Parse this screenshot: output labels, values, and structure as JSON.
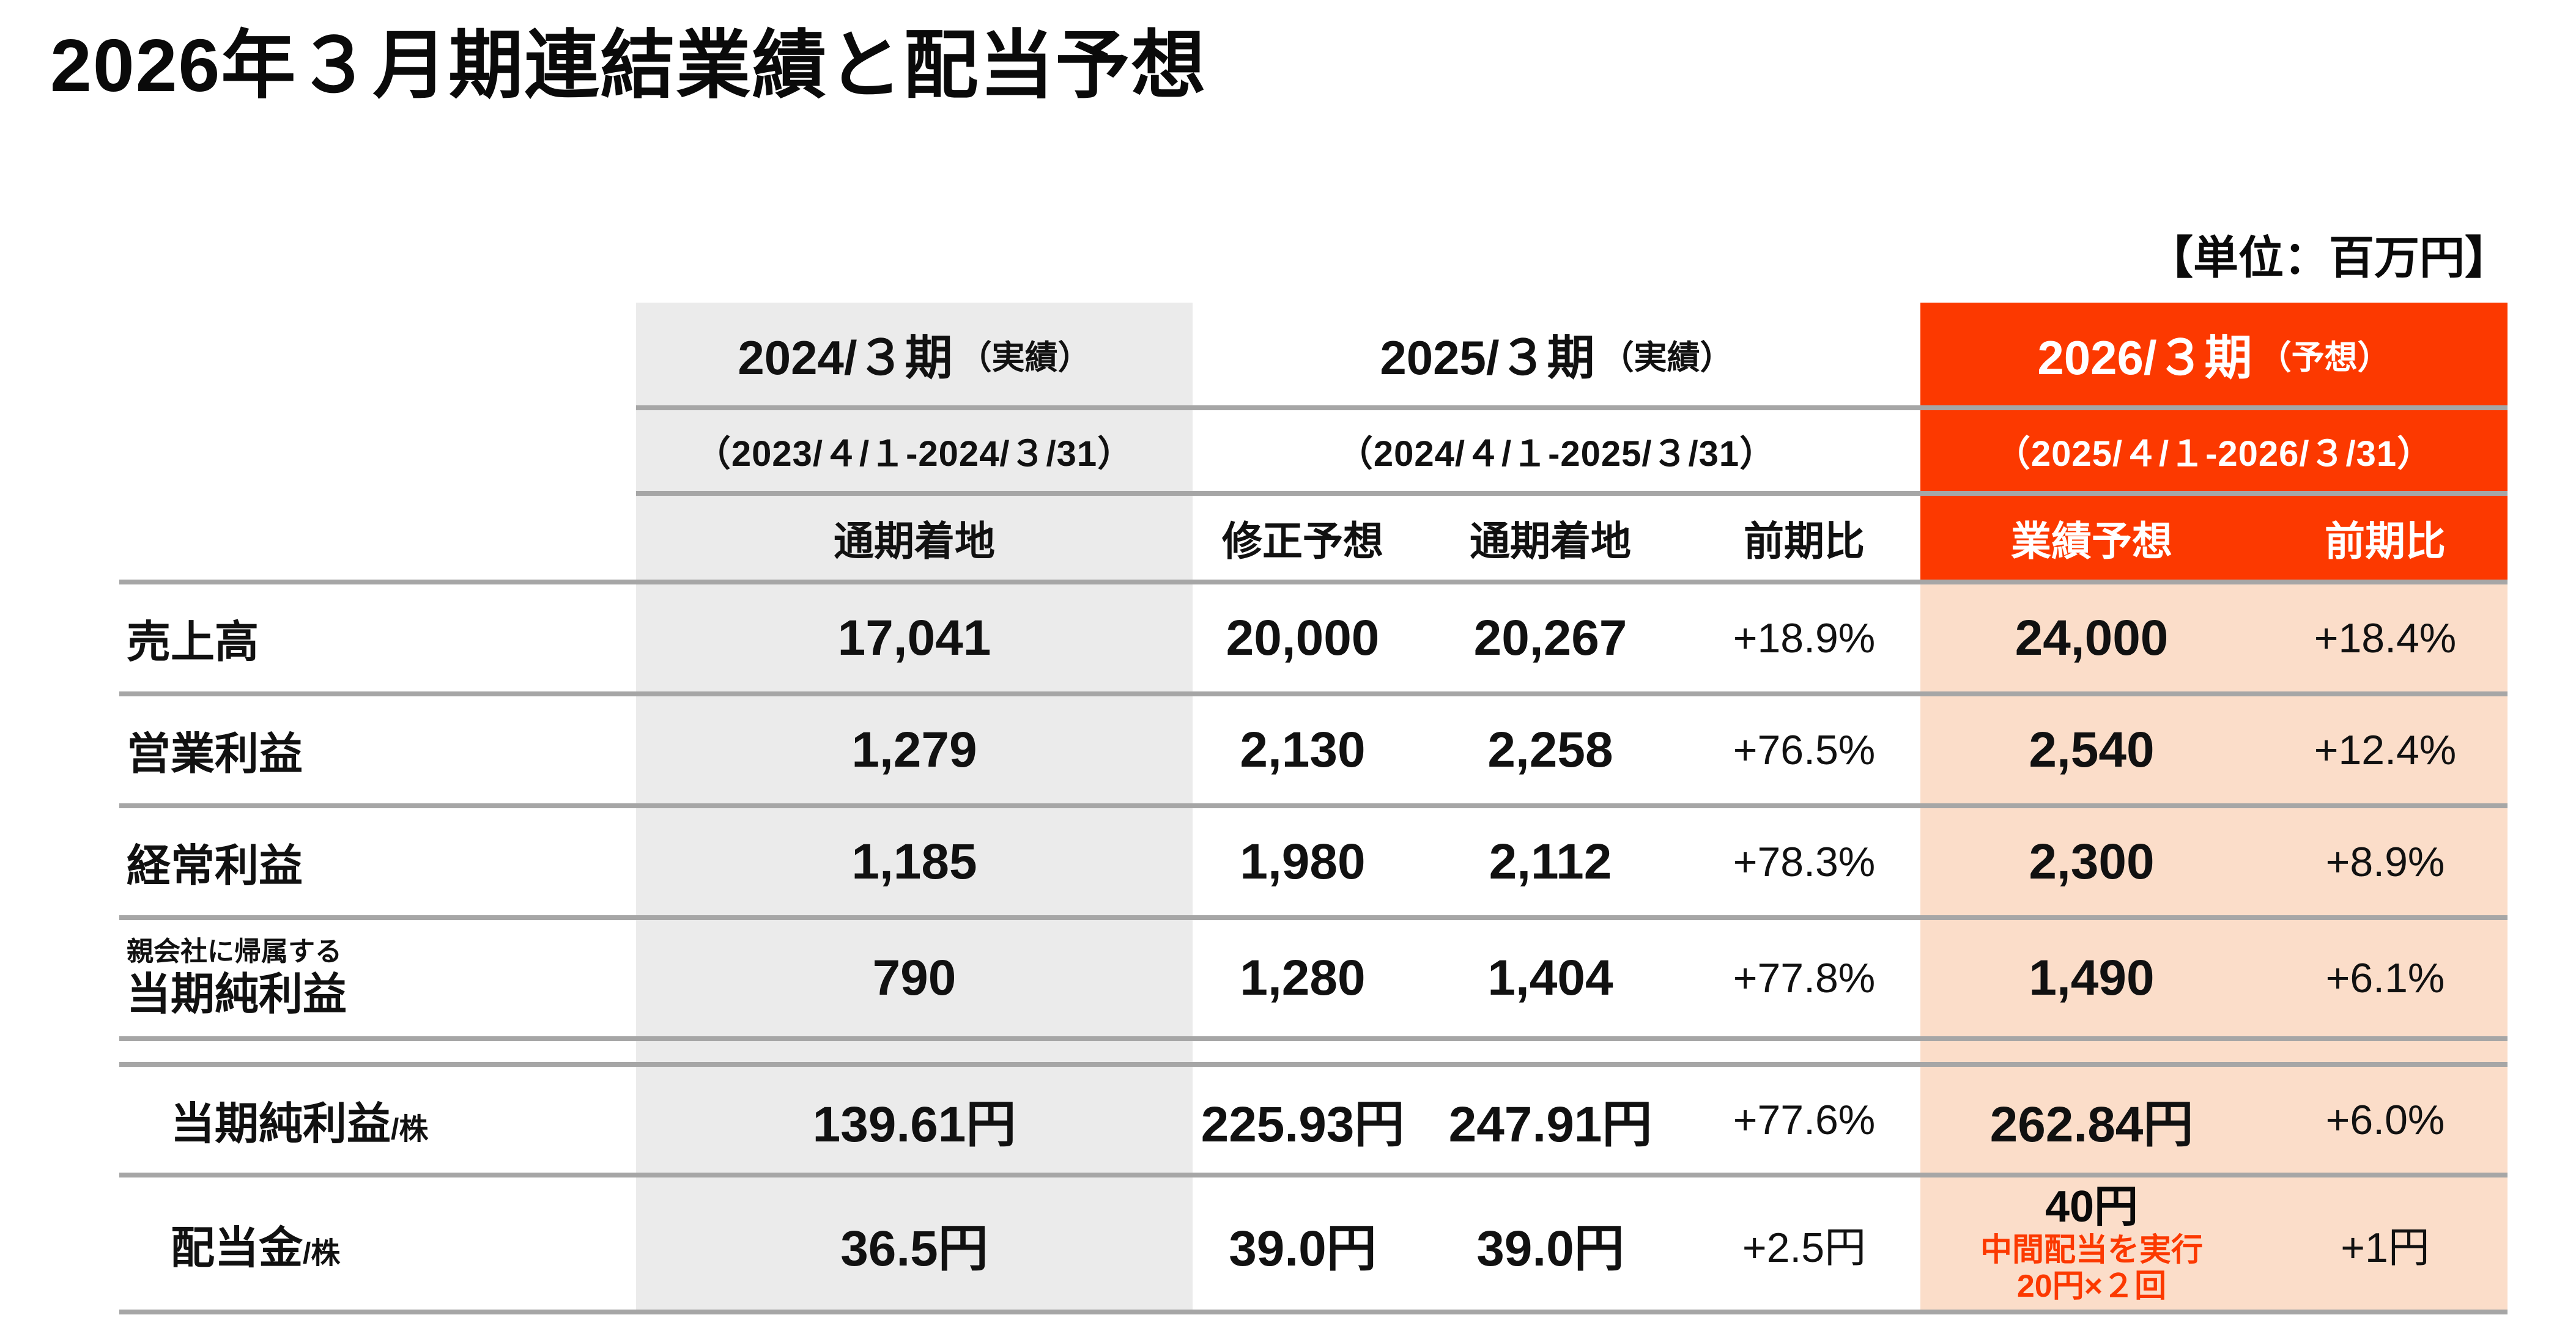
{
  "title": "2026年３月期連結業績と配当予想",
  "unit_note": "【単位：百万円】",
  "colors": {
    "accent_orange": "#FC3900",
    "forecast_peach": "#FBDDC9",
    "actual_gray": "#EBEBEB",
    "separator_line": "#A6A6A6"
  },
  "table": {
    "period_headers": [
      {
        "label": "2024/３期",
        "suffix": "（実績）",
        "range": "（2023/４/１-2024/３/31）"
      },
      {
        "label": "2025/３期",
        "suffix": "（実績）",
        "range": "（2024/４/１-2025/３/31）"
      },
      {
        "label": "2026/３期",
        "suffix": "（予想）",
        "range": "（2025/４/１-2026/３/31）"
      }
    ],
    "column_headers": {
      "fy2024_actual": "通期着地",
      "fy2025_revised": "修正予想",
      "fy2025_actual": "通期着地",
      "fy2025_yoy": "前期比",
      "fy2026_forecast": "業績予想",
      "fy2026_yoy": "前期比"
    },
    "rows": [
      {
        "label": "売上高",
        "fy2024": "17,041",
        "fy2025_revised": "20,000",
        "fy2025_actual": "20,267",
        "fy2025_yoy": "+18.9%",
        "fy2026": "24,000",
        "fy2026_yoy": "+18.4%"
      },
      {
        "label": "営業利益",
        "fy2024": "1,279",
        "fy2025_revised": "2,130",
        "fy2025_actual": "2,258",
        "fy2025_yoy": "+76.5%",
        "fy2026": "2,540",
        "fy2026_yoy": "+12.4%"
      },
      {
        "label": "経常利益",
        "fy2024": "1,185",
        "fy2025_revised": "1,980",
        "fy2025_actual": "2,112",
        "fy2025_yoy": "+78.3%",
        "fy2026": "2,300",
        "fy2026_yoy": "+8.9%"
      },
      {
        "label_note": "親会社に帰属する",
        "label": "当期純利益",
        "fy2024": "790",
        "fy2025_revised": "1,280",
        "fy2025_actual": "1,404",
        "fy2025_yoy": "+77.8%",
        "fy2026": "1,490",
        "fy2026_yoy": "+6.1%"
      },
      {
        "label": "当期純利益",
        "label_suffix": "/株",
        "fy2024": "139.61円",
        "fy2025_revised": "225.93円",
        "fy2025_actual": "247.91円",
        "fy2025_yoy": "+77.6%",
        "fy2026": "262.84円",
        "fy2026_yoy": "+6.0%"
      },
      {
        "label": "配当金",
        "label_suffix": "/株",
        "fy2024": "36.5円",
        "fy2025_revised": "39.0円",
        "fy2025_actual": "39.0円",
        "fy2025_yoy": "+2.5円",
        "fy2026": "40円",
        "fy2026_notes": [
          "中間配当を実行",
          "20円×２回"
        ],
        "fy2026_yoy": "+1円"
      }
    ]
  }
}
